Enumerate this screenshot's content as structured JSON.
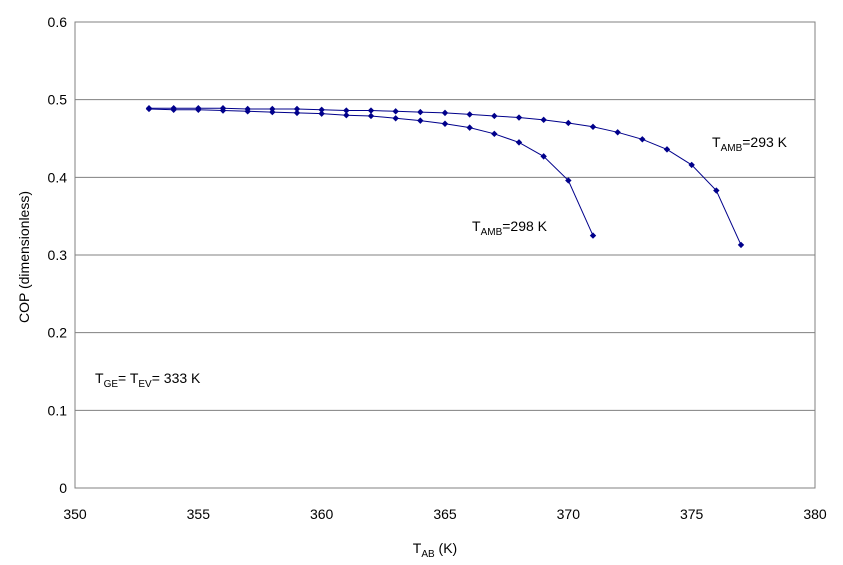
{
  "chart_data": {
    "type": "line",
    "title": "",
    "xlabel": {
      "main": "T",
      "sub": "AB",
      "suffix": " (K)"
    },
    "ylabel": "COP (dimensionless)",
    "xlim": [
      350,
      380
    ],
    "ylim": [
      0,
      0.6
    ],
    "xticks": [
      350,
      355,
      360,
      365,
      370,
      375,
      380
    ],
    "yticks": [
      0,
      0.1,
      0.2,
      0.3,
      0.4,
      0.5,
      0.6
    ],
    "xtick_labels": [
      "350",
      "355",
      "360",
      "365",
      "370",
      "375",
      "380"
    ],
    "ytick_labels": [
      "0",
      "0.1",
      "0.2",
      "0.3",
      "0.4",
      "0.5",
      "0.6"
    ],
    "grid": "horizontal",
    "series_color": "#00008B",
    "series": [
      {
        "label": {
          "main": "T",
          "sub": "AMB",
          "suffix": "=293 K"
        },
        "x": [
          353,
          354,
          355,
          356,
          357,
          358,
          359,
          360,
          361,
          362,
          363,
          364,
          365,
          366,
          367,
          368,
          369,
          370,
          371,
          372,
          373,
          374,
          375,
          376,
          377
        ],
        "y": [
          0.489,
          0.489,
          0.489,
          0.489,
          0.488,
          0.488,
          0.488,
          0.487,
          0.486,
          0.486,
          0.485,
          0.484,
          0.483,
          0.481,
          0.479,
          0.477,
          0.474,
          0.47,
          0.465,
          0.458,
          0.449,
          0.436,
          0.416,
          0.383,
          0.313
        ]
      },
      {
        "label": {
          "main": "T",
          "sub": "AMB",
          "suffix": "=298 K"
        },
        "x": [
          353,
          354,
          355,
          356,
          357,
          358,
          359,
          360,
          361,
          362,
          363,
          364,
          365,
          366,
          367,
          368,
          369,
          370,
          371
        ],
        "y": [
          0.488,
          0.487,
          0.487,
          0.486,
          0.485,
          0.484,
          0.483,
          0.482,
          0.48,
          0.479,
          0.476,
          0.473,
          0.469,
          0.464,
          0.456,
          0.445,
          0.427,
          0.396,
          0.325
        ]
      }
    ],
    "annotation": {
      "t1": "T",
      "s1": "GE",
      "mid": "=  T",
      "s2": "EV",
      "tail": "= 333 K"
    }
  }
}
